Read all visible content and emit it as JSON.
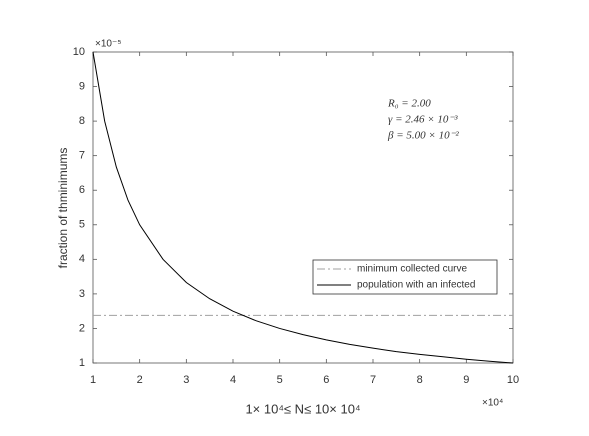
{
  "chart_data": {
    "type": "line",
    "xlabel": "1× 10⁴≤ N≤ 10× 10⁴",
    "ylabel": "fraction of thminimums",
    "x_exponent_label": "×10⁴",
    "y_exponent_label": "×10⁻⁵",
    "annotations": [
      "R₀ = 2.00",
      "γ = 2.46 × 10⁻³",
      "β = 5.00 × 10⁻²"
    ],
    "x": [
      1,
      1.25,
      1.5,
      1.75,
      2,
      2.5,
      3,
      3.5,
      4,
      4.5,
      5,
      5.5,
      6,
      6.5,
      7,
      7.5,
      8,
      8.5,
      9,
      9.5,
      10
    ],
    "series": [
      {
        "name": "minimum collected curve",
        "color": "#a0a0a0",
        "linestyle": "dashdot",
        "values": [
          2.38,
          2.38,
          2.38,
          2.38,
          2.38,
          2.38,
          2.38,
          2.38,
          2.38,
          2.38,
          2.38,
          2.38,
          2.38,
          2.38,
          2.38,
          2.38,
          2.38,
          2.38,
          2.38,
          2.38,
          2.38
        ]
      },
      {
        "name": "population with an infected",
        "color": "#000000",
        "linestyle": "solid",
        "values": [
          10,
          8,
          6.67,
          5.71,
          5,
          4,
          3.33,
          2.86,
          2.5,
          2.22,
          2,
          1.82,
          1.67,
          1.54,
          1.43,
          1.33,
          1.25,
          1.18,
          1.11,
          1.05,
          1
        ]
      }
    ],
    "xlim": [
      1,
      10
    ],
    "xticks": [
      1,
      2,
      3,
      4,
      5,
      6,
      7,
      8,
      9,
      10
    ],
    "ylim": [
      1,
      10
    ],
    "yticks": [
      1,
      2,
      3,
      4,
      5,
      6,
      7,
      8,
      9,
      10
    ],
    "grid": false,
    "legend": "right"
  }
}
